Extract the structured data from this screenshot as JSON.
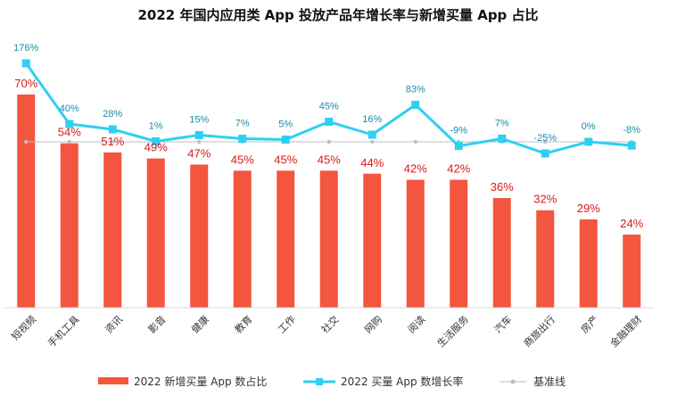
{
  "chart_data": {
    "type": "bar",
    "title": "2022 年国内应用类 App 投放产品年增长率与新增买量 App 占比",
    "categories": [
      "短视频",
      "手机工具",
      "资讯",
      "影音",
      "健康",
      "教育",
      "工作",
      "社交",
      "网购",
      "阅读",
      "生活服务",
      "汽车",
      "商旅出行",
      "房产",
      "金融理财"
    ],
    "series": [
      {
        "name": "2022 新增买量 App 数占比",
        "type": "bar",
        "color": "#f4553e",
        "values": [
          70,
          54,
          51,
          49,
          47,
          45,
          45,
          45,
          44,
          42,
          42,
          36,
          32,
          29,
          24
        ],
        "labels": [
          "70%",
          "54%",
          "51%",
          "49%",
          "47%",
          "45%",
          "45%",
          "45%",
          "44%",
          "42%",
          "42%",
          "36%",
          "32%",
          "29%",
          "24%"
        ]
      },
      {
        "name": "2022 买量 App 数增长率",
        "type": "line",
        "color": "#2ed0f0",
        "values": [
          176,
          40,
          28,
          1,
          15,
          7,
          5,
          45,
          16,
          83,
          -9,
          7,
          -25,
          0,
          -8
        ],
        "labels": [
          "176%",
          "40%",
          "28%",
          "1%",
          "15%",
          "7%",
          "5%",
          "45%",
          "16%",
          "83%",
          "-9%",
          "7%",
          "-25%",
          "0%",
          "-8%"
        ]
      },
      {
        "name": "基准线",
        "type": "line",
        "color": "#bfbfbf",
        "values": [
          0,
          0,
          0,
          0,
          0,
          0,
          0,
          0,
          0,
          0,
          0,
          0,
          0,
          0,
          0
        ]
      }
    ],
    "legend_position": "bottom",
    "grid": false
  }
}
